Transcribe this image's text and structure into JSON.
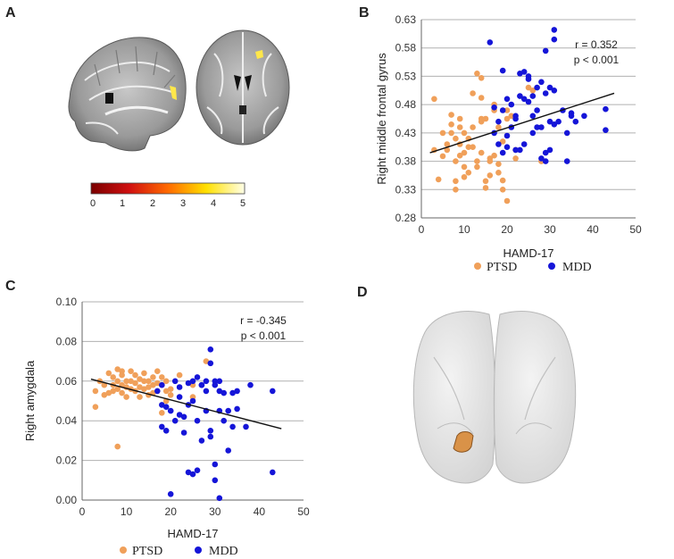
{
  "panels": {
    "A": {
      "label": "A",
      "colorbar": {
        "ticks": [
          "0",
          "1",
          "2",
          "3",
          "4",
          "5"
        ]
      }
    },
    "B": {
      "label": "B"
    },
    "C": {
      "label": "C"
    },
    "D": {
      "label": "D"
    }
  },
  "colors": {
    "ptsd": "#f0a05a",
    "mdd": "#1515d8",
    "fit": "#111111",
    "grid": "#b0b0b0"
  },
  "legend": {
    "ptsd": "PTSD",
    "mdd": "MDD"
  },
  "chart_data": [
    {
      "id": "B",
      "type": "scatter",
      "xlabel": "HAMD-17",
      "ylabel": "Right middle frontal gyrus",
      "xlim": [
        0,
        50
      ],
      "ylim": [
        0.28,
        0.63
      ],
      "xticks": [
        "0",
        "10",
        "20",
        "30",
        "40",
        "50"
      ],
      "yticks": [
        "0.28",
        "0.33",
        "0.38",
        "0.43",
        "0.48",
        "0.53",
        "0.58",
        "0.63"
      ],
      "stats": {
        "r": "r = 0.352",
        "p": "p < 0.001"
      },
      "fit_line": {
        "x": [
          2,
          45
        ],
        "y": [
          0.395,
          0.5
        ]
      },
      "series": [
        {
          "name": "PTSD",
          "points": [
            [
              3,
              0.49
            ],
            [
              4,
              0.348
            ],
            [
              5,
              0.389
            ],
            [
              6,
              0.4
            ],
            [
              6,
              0.41
            ],
            [
              7,
              0.43
            ],
            [
              7,
              0.445
            ],
            [
              7,
              0.462
            ],
            [
              8,
              0.345
            ],
            [
              8,
              0.33
            ],
            [
              8,
              0.38
            ],
            [
              8,
              0.42
            ],
            [
              9,
              0.44
            ],
            [
              9,
              0.41
            ],
            [
              9,
              0.39
            ],
            [
              10,
              0.352
            ],
            [
              10,
              0.37
            ],
            [
              10,
              0.395
            ],
            [
              10,
              0.43
            ],
            [
              11,
              0.36
            ],
            [
              11,
              0.405
            ],
            [
              11,
              0.42
            ],
            [
              12,
              0.5
            ],
            [
              12,
              0.44
            ],
            [
              12,
              0.405
            ],
            [
              13,
              0.38
            ],
            [
              13,
              0.535
            ],
            [
              13,
              0.37
            ],
            [
              14,
              0.527
            ],
            [
              14,
              0.492
            ],
            [
              14,
              0.455
            ],
            [
              14,
              0.45
            ],
            [
              14,
              0.395
            ],
            [
              15,
              0.455
            ],
            [
              15,
              0.345
            ],
            [
              15,
              0.333
            ],
            [
              16,
              0.38
            ],
            [
              16,
              0.385
            ],
            [
              16,
              0.355
            ],
            [
              17,
              0.39
            ],
            [
              17,
              0.48
            ],
            [
              17,
              0.47
            ],
            [
              18,
              0.36
            ],
            [
              18,
              0.44
            ],
            [
              18,
              0.375
            ],
            [
              19,
              0.415
            ],
            [
              19,
              0.346
            ],
            [
              19,
              0.33
            ],
            [
              20,
              0.31
            ],
            [
              20,
              0.455
            ],
            [
              20,
              0.47
            ],
            [
              21,
              0.46
            ],
            [
              22,
              0.4
            ],
            [
              22,
              0.385
            ],
            [
              25,
              0.51
            ],
            [
              26,
              0.505
            ],
            [
              28,
              0.38
            ],
            [
              3,
              0.4
            ],
            [
              5,
              0.43
            ],
            [
              9,
              0.455
            ]
          ]
        },
        {
          "name": "MDD",
          "points": [
            [
              16,
              0.59
            ],
            [
              17,
              0.43
            ],
            [
              17,
              0.475
            ],
            [
              18,
              0.41
            ],
            [
              18,
              0.45
            ],
            [
              19,
              0.54
            ],
            [
              19,
              0.395
            ],
            [
              19,
              0.47
            ],
            [
              20,
              0.425
            ],
            [
              20,
              0.49
            ],
            [
              20,
              0.405
            ],
            [
              21,
              0.44
            ],
            [
              22,
              0.46
            ],
            [
              22,
              0.4
            ],
            [
              22,
              0.455
            ],
            [
              23,
              0.535
            ],
            [
              23,
              0.495
            ],
            [
              24,
              0.538
            ],
            [
              24,
              0.49
            ],
            [
              24,
              0.41
            ],
            [
              25,
              0.53
            ],
            [
              25,
              0.525
            ],
            [
              25,
              0.485
            ],
            [
              26,
              0.495
            ],
            [
              26,
              0.43
            ],
            [
              27,
              0.51
            ],
            [
              27,
              0.47
            ],
            [
              28,
              0.52
            ],
            [
              28,
              0.44
            ],
            [
              28,
              0.385
            ],
            [
              29,
              0.575
            ],
            [
              29,
              0.5
            ],
            [
              29,
              0.395
            ],
            [
              30,
              0.51
            ],
            [
              30,
              0.45
            ],
            [
              30,
              0.4
            ],
            [
              31,
              0.612
            ],
            [
              31,
              0.595
            ],
            [
              31,
              0.505
            ],
            [
              31,
              0.445
            ],
            [
              32,
              0.45
            ],
            [
              33,
              0.47
            ],
            [
              34,
              0.43
            ],
            [
              34,
              0.38
            ],
            [
              35,
              0.465
            ],
            [
              35,
              0.46
            ],
            [
              36,
              0.45
            ],
            [
              38,
              0.46
            ],
            [
              43,
              0.472
            ],
            [
              43,
              0.435
            ],
            [
              21,
              0.48
            ],
            [
              26,
              0.46
            ],
            [
              29,
              0.38
            ],
            [
              23,
              0.4
            ],
            [
              27,
              0.44
            ]
          ]
        }
      ]
    },
    {
      "id": "C",
      "type": "scatter",
      "xlabel": "HAMD-17",
      "ylabel": "Right amygdala",
      "xlim": [
        0,
        50
      ],
      "ylim": [
        0,
        0.1
      ],
      "xticks": [
        "0",
        "10",
        "20",
        "30",
        "40",
        "50"
      ],
      "yticks": [
        "0.00",
        "0.02",
        "0.04",
        "0.06",
        "0.08",
        "0.10"
      ],
      "stats": {
        "r": "r = -0.345",
        "p": "p < 0.001"
      },
      "fit_line": {
        "x": [
          2,
          45
        ],
        "y": [
          0.061,
          0.036
        ]
      },
      "series": [
        {
          "name": "PTSD",
          "points": [
            [
              3,
              0.055
            ],
            [
              3,
              0.047
            ],
            [
              4,
              0.06
            ],
            [
              5,
              0.058
            ],
            [
              6,
              0.054
            ],
            [
              6,
              0.064
            ],
            [
              7,
              0.055
            ],
            [
              7,
              0.062
            ],
            [
              7,
              0.058
            ],
            [
              8,
              0.066
            ],
            [
              8,
              0.06
            ],
            [
              8,
              0.056
            ],
            [
              8,
              0.027
            ],
            [
              9,
              0.063
            ],
            [
              9,
              0.058
            ],
            [
              9,
              0.054
            ],
            [
              10,
              0.06
            ],
            [
              10,
              0.057
            ],
            [
              10,
              0.052
            ],
            [
              11,
              0.065
            ],
            [
              11,
              0.06
            ],
            [
              11,
              0.056
            ],
            [
              12,
              0.063
            ],
            [
              12,
              0.059
            ],
            [
              12,
              0.055
            ],
            [
              13,
              0.061
            ],
            [
              13,
              0.057
            ],
            [
              13,
              0.052
            ],
            [
              14,
              0.064
            ],
            [
              14,
              0.06
            ],
            [
              14,
              0.056
            ],
            [
              15,
              0.06
            ],
            [
              15,
              0.057
            ],
            [
              15,
              0.053
            ],
            [
              16,
              0.062
            ],
            [
              16,
              0.058
            ],
            [
              16,
              0.054
            ],
            [
              17,
              0.059
            ],
            [
              17,
              0.055
            ],
            [
              17,
              0.065
            ],
            [
              18,
              0.058
            ],
            [
              18,
              0.044
            ],
            [
              18,
              0.062
            ],
            [
              19,
              0.06
            ],
            [
              19,
              0.055
            ],
            [
              19,
              0.05
            ],
            [
              20,
              0.056
            ],
            [
              20,
              0.053
            ],
            [
              22,
              0.063
            ],
            [
              25,
              0.058
            ],
            [
              25,
              0.052
            ],
            [
              28,
              0.07
            ],
            [
              5,
              0.053
            ],
            [
              9,
              0.065
            ]
          ]
        },
        {
          "name": "MDD",
          "points": [
            [
              17,
              0.055
            ],
            [
              18,
              0.058
            ],
            [
              18,
              0.048
            ],
            [
              18,
              0.037
            ],
            [
              19,
              0.047
            ],
            [
              19,
              0.035
            ],
            [
              20,
              0.045
            ],
            [
              20,
              0.003
            ],
            [
              21,
              0.06
            ],
            [
              21,
              0.04
            ],
            [
              22,
              0.057
            ],
            [
              22,
              0.052
            ],
            [
              22,
              0.043
            ],
            [
              23,
              0.042
            ],
            [
              23,
              0.034
            ],
            [
              24,
              0.014
            ],
            [
              24,
              0.059
            ],
            [
              24,
              0.048
            ],
            [
              25,
              0.06
            ],
            [
              25,
              0.05
            ],
            [
              25,
              0.013
            ],
            [
              26,
              0.062
            ],
            [
              26,
              0.04
            ],
            [
              26,
              0.015
            ],
            [
              27,
              0.058
            ],
            [
              27,
              0.03
            ],
            [
              28,
              0.06
            ],
            [
              28,
              0.055
            ],
            [
              28,
              0.045
            ],
            [
              29,
              0.076
            ],
            [
              29,
              0.069
            ],
            [
              29,
              0.035
            ],
            [
              29,
              0.032
            ],
            [
              30,
              0.06
            ],
            [
              30,
              0.058
            ],
            [
              30,
              0.01
            ],
            [
              30,
              0.018
            ],
            [
              31,
              0.055
            ],
            [
              31,
              0.045
            ],
            [
              31,
              0.001
            ],
            [
              32,
              0.054
            ],
            [
              32,
              0.04
            ],
            [
              33,
              0.045
            ],
            [
              34,
              0.054
            ],
            [
              34,
              0.037
            ],
            [
              35,
              0.055
            ],
            [
              35,
              0.046
            ],
            [
              37,
              0.037
            ],
            [
              38,
              0.058
            ],
            [
              43,
              0.055
            ],
            [
              43,
              0.014
            ],
            [
              27,
              0.058
            ],
            [
              31,
              0.06
            ],
            [
              33,
              0.025
            ]
          ]
        }
      ]
    }
  ]
}
